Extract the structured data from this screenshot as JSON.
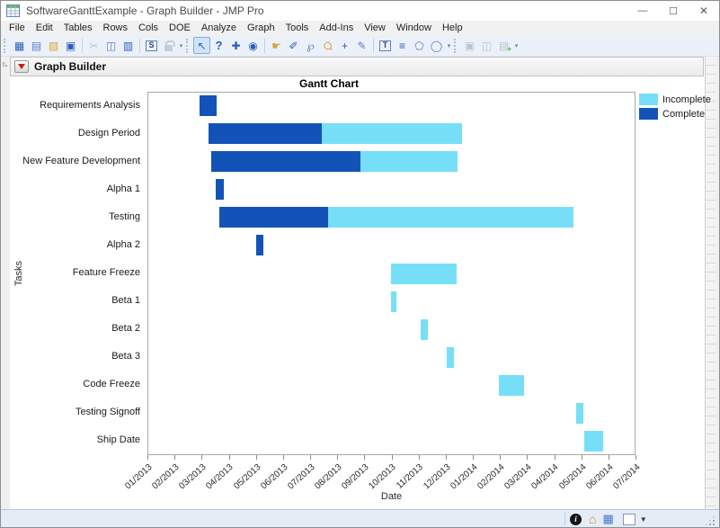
{
  "window": {
    "title": "SoftwareGanttExample - Graph Builder - JMP Pro",
    "controls": {
      "minimize": "—",
      "maximize": "☐",
      "close": "✕"
    }
  },
  "menu": {
    "items": [
      "File",
      "Edit",
      "Tables",
      "Rows",
      "Cols",
      "DOE",
      "Analyze",
      "Graph",
      "Tools",
      "Add-Ins",
      "View",
      "Window",
      "Help"
    ]
  },
  "toolbar": {
    "icons": {
      "new_journal": "▦",
      "export": "▤",
      "open": "▧",
      "save": "▣",
      "cut": "✂",
      "copy": "◫",
      "paste": "▥",
      "script": "S",
      "arrow_tool": "↖",
      "help_tool": "?",
      "move_tool": "✚",
      "target_tool": "◉",
      "hand_tool": "☛",
      "brush_tool": "✐",
      "lasso_tool": "℘",
      "magnifier_tool": "Ϙ",
      "crosshair_tool": "+",
      "eraser_tool": "✎",
      "text_annotate": "T",
      "line_annotate": "≡",
      "polygon_annotate": "⬠",
      "oval_annotate": "◯",
      "save_journal": "▣",
      "paste_special": "◫",
      "new_script": "▤",
      "new_script_plus": "+",
      "dropdown": "▾"
    }
  },
  "outline": {
    "header_title": "Graph Builder",
    "disclosure_glyph": "⊿"
  },
  "chart_data": {
    "type": "bar",
    "subtype": "gantt",
    "title": "Gantt Chart",
    "xlabel": "Date",
    "ylabel": "Tasks",
    "x_range": [
      "2013-01-01",
      "2014-07-01"
    ],
    "x_tick_labels": [
      "01/2013",
      "02/2013",
      "03/2013",
      "04/2013",
      "05/2013",
      "06/2013",
      "07/2013",
      "08/2013",
      "09/2013",
      "10/2013",
      "11/2013",
      "12/2013",
      "01/2014",
      "02/2014",
      "03/2014",
      "04/2014",
      "05/2014",
      "06/2014",
      "07/2014"
    ],
    "legend": [
      {
        "label": "Incomplete",
        "color": "#76dff7"
      },
      {
        "label": "Complete",
        "color": "#1353b8"
      }
    ],
    "tasks": [
      {
        "label": "Requirements Analysis",
        "start": "2013-02-28",
        "complete_until": "2013-03-19",
        "end": "2013-03-19"
      },
      {
        "label": "Design Period",
        "start": "2013-03-10",
        "complete_until": "2013-07-15",
        "end": "2013-12-19"
      },
      {
        "label": "New Feature Development",
        "start": "2013-03-13",
        "complete_until": "2013-08-27",
        "end": "2013-12-14"
      },
      {
        "label": "Alpha 1",
        "start": "2013-03-18",
        "complete_until": "2013-03-27",
        "end": "2013-03-27"
      },
      {
        "label": "Testing",
        "start": "2013-03-22",
        "complete_until": "2013-07-22",
        "end": "2014-04-23"
      },
      {
        "label": "Alpha 2",
        "start": "2013-05-03",
        "complete_until": "2013-05-11",
        "end": "2013-05-11"
      },
      {
        "label": "Feature Freeze",
        "start": "2013-09-30",
        "complete_until": "2013-09-30",
        "end": "2013-12-13"
      },
      {
        "label": "Beta 1",
        "start": "2013-09-30",
        "complete_until": "2013-09-30",
        "end": "2013-10-07"
      },
      {
        "label": "Beta 2",
        "start": "2013-11-03",
        "complete_until": "2013-11-03",
        "end": "2013-11-11"
      },
      {
        "label": "Beta 3",
        "start": "2013-12-02",
        "complete_until": "2013-12-02",
        "end": "2013-12-10"
      },
      {
        "label": "Code Freeze",
        "start": "2014-01-29",
        "complete_until": "2014-01-29",
        "end": "2014-02-26"
      },
      {
        "label": "Testing Signoff",
        "start": "2014-04-26",
        "complete_until": "2014-04-26",
        "end": "2014-05-04"
      },
      {
        "label": "Ship Date",
        "start": "2014-05-05",
        "complete_until": "2014-05-05",
        "end": "2014-05-26"
      }
    ]
  },
  "statusbar": {
    "info_glyph": "i",
    "home_glyph": "⌂",
    "table_glyph": "▦",
    "caret_glyph": "▼"
  }
}
